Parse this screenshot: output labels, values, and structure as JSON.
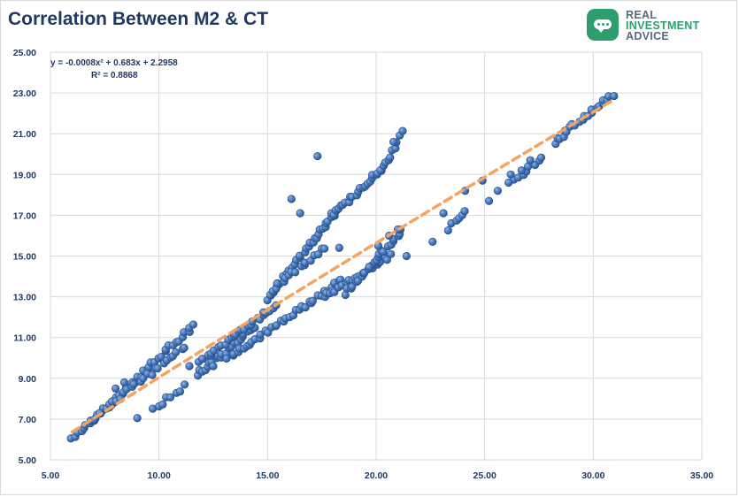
{
  "title": "Correlation Between M2 & CT",
  "logo": {
    "line1": "REAL",
    "line2": "INVESTMENT",
    "line3": "ADVICE",
    "line1_color": "#5a6a7a",
    "line2_color": "#2e9e6e",
    "line3_color": "#5a6a7a"
  },
  "colors": {
    "points": "#3d6fb0",
    "trend": "#f4a460",
    "grid": "#d9d9d9",
    "axis_text": "#1f3864"
  },
  "chart_data": {
    "type": "scatter",
    "title": "Correlation Between M2 & CT",
    "xlabel": "",
    "ylabel": "",
    "xlim": [
      5,
      35
    ],
    "ylim": [
      5,
      25
    ],
    "x_ticks": [
      "5.00",
      "10.00",
      "15.00",
      "20.00",
      "25.00",
      "30.00",
      "35.00"
    ],
    "y_ticks": [
      "5.00",
      "7.00",
      "9.00",
      "11.00",
      "13.00",
      "15.00",
      "17.00",
      "19.00",
      "21.00",
      "23.00",
      "25.00"
    ],
    "grid": "vertical and horizontal",
    "equation": "y = -0.0008x² + 0.683x + 2.2958",
    "r_squared": "R² = 0.8868",
    "trendline": {
      "type": "polynomial",
      "coefficients": [
        -0.0008,
        0.683,
        2.2958
      ],
      "x_range": [
        6.0,
        30.9
      ]
    },
    "segments": [
      {
        "x0": 6.0,
        "x1": 11.6,
        "y0": 6.0,
        "y1": 11.6,
        "n": 42
      },
      {
        "x0": 6.8,
        "x1": 11.2,
        "y0": 6.9,
        "y1": 10.6,
        "n": 26
      },
      {
        "x0": 9.8,
        "x1": 11.2,
        "y0": 7.5,
        "y1": 8.6,
        "n": 8
      },
      {
        "x0": 11.8,
        "x1": 14.4,
        "y0": 9.2,
        "y1": 11.5,
        "n": 24
      },
      {
        "x0": 11.8,
        "x1": 15.4,
        "y0": 9.8,
        "y1": 12.6,
        "n": 28
      },
      {
        "x0": 13.2,
        "x1": 18.4,
        "y0": 10.0,
        "y1": 13.8,
        "n": 38
      },
      {
        "x0": 15.0,
        "x1": 18.2,
        "y0": 12.9,
        "y1": 17.3,
        "n": 34
      },
      {
        "x0": 15.2,
        "x1": 17.6,
        "y0": 13.3,
        "y1": 15.4,
        "n": 16
      },
      {
        "x0": 17.6,
        "x1": 20.6,
        "y0": 13.0,
        "y1": 15.0,
        "n": 26
      },
      {
        "x0": 18.0,
        "x1": 20.6,
        "y0": 17.0,
        "y1": 19.6,
        "n": 26
      },
      {
        "x0": 18.6,
        "x1": 21.2,
        "y0": 13.2,
        "y1": 16.2,
        "n": 24
      },
      {
        "x0": 20.6,
        "x1": 21.2,
        "y0": 19.8,
        "y1": 21.2,
        "n": 6
      },
      {
        "x0": 23.4,
        "x1": 24.0,
        "y0": 16.3,
        "y1": 17.3,
        "n": 6
      },
      {
        "x0": 26.4,
        "x1": 27.6,
        "y0": 18.7,
        "y1": 19.9,
        "n": 8
      },
      {
        "x0": 28.2,
        "x1": 30.9,
        "y0": 20.6,
        "y1": 22.9,
        "n": 22
      }
    ],
    "points_extra": [
      [
        9.0,
        7.05
      ],
      [
        17.3,
        19.9
      ],
      [
        16.1,
        17.8
      ],
      [
        16.5,
        17.1
      ],
      [
        21.4,
        15.0
      ],
      [
        22.6,
        15.7
      ],
      [
        23.1,
        17.1
      ],
      [
        24.1,
        18.2
      ],
      [
        24.9,
        18.7
      ],
      [
        25.2,
        17.7
      ],
      [
        25.6,
        18.2
      ],
      [
        26.2,
        19.0
      ],
      [
        26.1,
        18.6
      ],
      [
        26.7,
        19.2
      ],
      [
        27.1,
        19.7
      ],
      [
        18.3,
        15.4
      ],
      [
        20.1,
        15.5
      ],
      [
        20.6,
        16.0
      ],
      [
        21.0,
        16.3
      ],
      [
        20.8,
        20.6
      ],
      [
        11.4,
        9.6
      ],
      [
        12.5,
        9.6
      ],
      [
        8.0,
        8.5
      ],
      [
        8.4,
        8.8
      ]
    ]
  }
}
